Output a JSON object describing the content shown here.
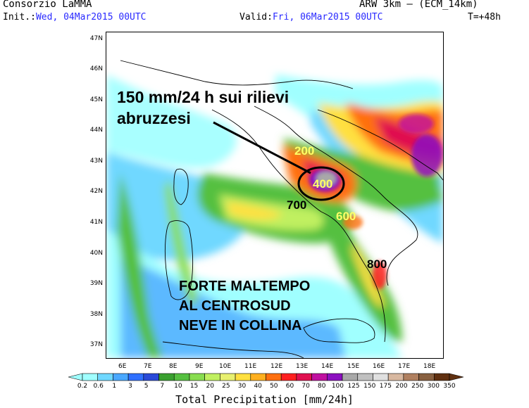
{
  "header": {
    "org": "Consorzio LaMMA",
    "model": "ARW 3km – (ECM_14km)",
    "init_label": "Init.:",
    "init_value": "Wed, 04Mar2015 00UTC",
    "valid_label": "Valid:",
    "valid_value": "Fri, 06Mar2015 00UTC",
    "lead": "T=+48h"
  },
  "axes": {
    "lat_labels": [
      "47N",
      "46N",
      "45N",
      "44N",
      "43N",
      "42N",
      "41N",
      "40N",
      "39N",
      "38N",
      "37N"
    ],
    "lon_labels": [
      "6E",
      "7E",
      "8E",
      "9E",
      "10E",
      "11E",
      "12E",
      "13E",
      "14E",
      "15E",
      "16E",
      "17E",
      "18E"
    ]
  },
  "annotations": {
    "headline_line1": "150 mm/24 h sui rilievi",
    "headline_line2": "abruzzesi",
    "warning_line1": "FORTE MALTEMPO",
    "warning_line2": "AL CENTROSUD",
    "warning_line3": "NEVE IN COLLINA",
    "value_200": "200",
    "value_400": "400",
    "value_700": "700",
    "value_600": "600",
    "value_800": "800"
  },
  "colorbar": {
    "title": "Total Precipitation [mm/24h]",
    "values": [
      "0.2",
      "0.6",
      "1",
      "3",
      "5",
      "7",
      "10",
      "15",
      "20",
      "25",
      "30",
      "40",
      "50",
      "60",
      "70",
      "80",
      "100",
      "125",
      "150",
      "175",
      "200",
      "250",
      "300",
      "350"
    ],
    "colors": [
      "#a0ffff",
      "#70d8ff",
      "#4aa8ff",
      "#3070ff",
      "#2a4ad8",
      "#3aa030",
      "#55c040",
      "#88dd50",
      "#c0f060",
      "#e8f070",
      "#ffe040",
      "#ffb020",
      "#ff7010",
      "#ff2020",
      "#e01050",
      "#c010a0",
      "#8c10c0",
      "#a8a8a8",
      "#c0c0c0",
      "#e0e0e0",
      "#d8b8a0",
      "#b08060",
      "#886040",
      "#603010"
    ]
  },
  "colors": {
    "land_outline": "#000000",
    "headline": "#000000",
    "label_yellow": "#ffff66"
  }
}
